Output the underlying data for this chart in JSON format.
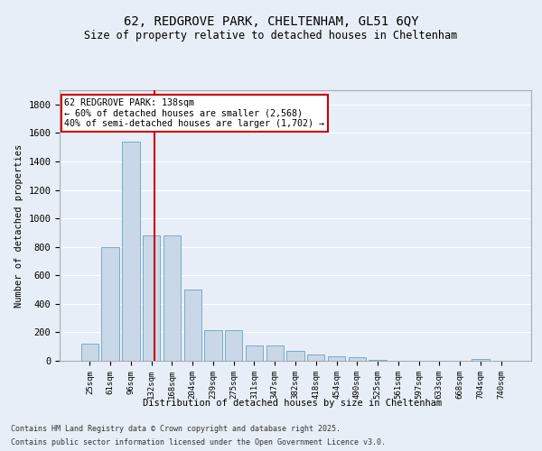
{
  "title": "62, REDGROVE PARK, CHELTENHAM, GL51 6QY",
  "subtitle": "Size of property relative to detached houses in Cheltenham",
  "xlabel": "Distribution of detached houses by size in Cheltenham",
  "ylabel": "Number of detached properties",
  "bins": [
    "25sqm",
    "61sqm",
    "96sqm",
    "132sqm",
    "168sqm",
    "204sqm",
    "239sqm",
    "275sqm",
    "311sqm",
    "347sqm",
    "382sqm",
    "418sqm",
    "454sqm",
    "490sqm",
    "525sqm",
    "561sqm",
    "597sqm",
    "633sqm",
    "668sqm",
    "704sqm",
    "740sqm"
  ],
  "values": [
    120,
    800,
    1540,
    880,
    880,
    500,
    215,
    215,
    110,
    110,
    70,
    45,
    30,
    25,
    5,
    0,
    0,
    0,
    0,
    10,
    0
  ],
  "bar_color": "#c8d8e8",
  "bar_edge_color": "#7aaac8",
  "bg_color": "#e8eef8",
  "grid_color": "#ffffff",
  "annotation_text": "62 REDGROVE PARK: 138sqm\n← 60% of detached houses are smaller (2,568)\n40% of semi-detached houses are larger (1,702) →",
  "annotation_box_color": "#ffffff",
  "annotation_box_edge": "#cc0000",
  "red_line_color": "#cc0000",
  "ylim": [
    0,
    1900
  ],
  "yticks": [
    0,
    200,
    400,
    600,
    800,
    1000,
    1200,
    1400,
    1600,
    1800
  ],
  "footer1": "Contains HM Land Registry data © Crown copyright and database right 2025.",
  "footer2": "Contains public sector information licensed under the Open Government Licence v3.0."
}
